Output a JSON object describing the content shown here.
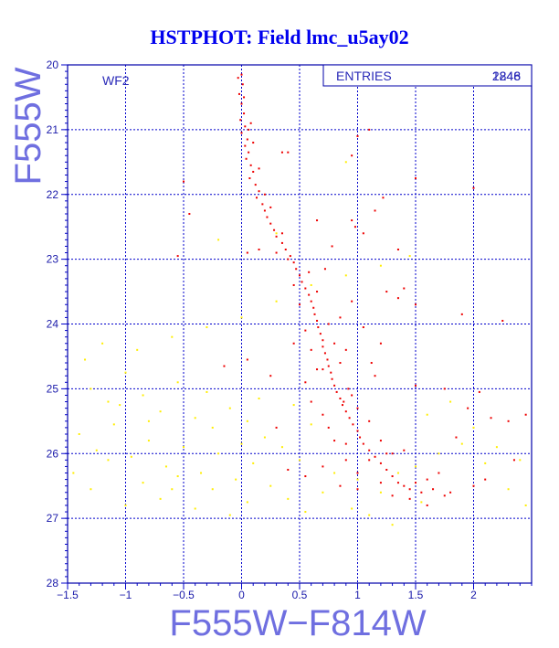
{
  "chart_data": {
    "type": "scatter",
    "title": "HSTPHOT: Field lmc_u5ay02",
    "xlabel": "F555W−F814W",
    "ylabel": "F555W",
    "xlim": [
      -1.5,
      2.5
    ],
    "ylim": [
      28,
      20
    ],
    "y_inverted": true,
    "grid": true,
    "x_ticks": [
      -1.5,
      -1,
      -0.5,
      0,
      0.5,
      1,
      1.5,
      2
    ],
    "x_tick_labels": [
      "−1.5",
      "−1",
      "−0.5",
      "0",
      "0.5",
      "1",
      "1.5",
      "2"
    ],
    "y_ticks": [
      20,
      21,
      22,
      23,
      24,
      25,
      26,
      27,
      28
    ],
    "y_tick_labels": [
      "20",
      "21",
      "22",
      "23",
      "24",
      "25",
      "26",
      "27",
      "28"
    ],
    "annotation": "WF2",
    "stats_box": {
      "label": "ENTRIES",
      "values": [
        "1248",
        "2846"
      ]
    },
    "colors": {
      "primary_points": "#ee0000",
      "secondary_points": "#ffee00",
      "grid": "#0000cc",
      "frame": "#0000aa"
    },
    "series": [
      {
        "color": "#ee0000",
        "points": [
          [
            0.0,
            20.15
          ],
          [
            0.01,
            20.3
          ],
          [
            -0.02,
            20.45
          ],
          [
            0.0,
            20.6
          ],
          [
            0.02,
            20.75
          ],
          [
            -0.01,
            20.85
          ],
          [
            0.03,
            20.95
          ],
          [
            0.0,
            21.05
          ],
          [
            0.05,
            21.15
          ],
          [
            0.03,
            21.25
          ],
          [
            0.06,
            21.35
          ],
          [
            0.04,
            21.45
          ],
          [
            0.08,
            21.55
          ],
          [
            0.1,
            21.65
          ],
          [
            0.07,
            21.75
          ],
          [
            0.12,
            21.85
          ],
          [
            0.15,
            21.95
          ],
          [
            0.13,
            22.05
          ],
          [
            0.18,
            22.15
          ],
          [
            0.2,
            22.25
          ],
          [
            0.22,
            22.35
          ],
          [
            0.25,
            22.45
          ],
          [
            0.28,
            22.55
          ],
          [
            0.3,
            22.65
          ],
          [
            0.35,
            22.75
          ],
          [
            0.38,
            22.85
          ],
          [
            0.42,
            22.95
          ],
          [
            0.45,
            23.05
          ],
          [
            0.47,
            23.15
          ],
          [
            0.5,
            23.25
          ],
          [
            0.52,
            23.35
          ],
          [
            0.55,
            23.45
          ],
          [
            0.58,
            23.55
          ],
          [
            0.6,
            23.65
          ],
          [
            0.62,
            23.75
          ],
          [
            0.63,
            23.85
          ],
          [
            0.65,
            23.95
          ],
          [
            0.66,
            24.05
          ],
          [
            0.68,
            24.15
          ],
          [
            0.7,
            24.25
          ],
          [
            0.7,
            24.35
          ],
          [
            0.72,
            24.45
          ],
          [
            0.74,
            24.55
          ],
          [
            0.75,
            24.65
          ],
          [
            0.77,
            24.75
          ],
          [
            0.78,
            24.85
          ],
          [
            0.8,
            24.95
          ],
          [
            0.82,
            25.05
          ],
          [
            0.85,
            25.15
          ],
          [
            0.87,
            25.25
          ],
          [
            0.9,
            25.35
          ],
          [
            0.93,
            25.45
          ],
          [
            0.96,
            25.55
          ],
          [
            1.0,
            25.65
          ],
          [
            1.02,
            25.75
          ],
          [
            1.05,
            25.85
          ],
          [
            1.1,
            25.95
          ],
          [
            1.15,
            26.05
          ],
          [
            1.2,
            26.15
          ],
          [
            1.25,
            26.25
          ],
          [
            1.3,
            26.35
          ],
          [
            1.35,
            26.45
          ],
          [
            1.4,
            26.5
          ],
          [
            1.45,
            26.55
          ],
          [
            1.5,
            26.45
          ],
          [
            1.55,
            26.6
          ],
          [
            1.6,
            26.4
          ],
          [
            1.65,
            26.55
          ],
          [
            1.2,
            26.45
          ],
          [
            1.0,
            26.3
          ],
          [
            0.9,
            26.1
          ],
          [
            0.8,
            25.8
          ],
          [
            0.75,
            25.6
          ],
          [
            0.7,
            25.4
          ],
          [
            0.95,
            25.1
          ],
          [
            1.0,
            25.3
          ],
          [
            1.1,
            25.5
          ],
          [
            1.2,
            25.8
          ],
          [
            1.3,
            26.0
          ],
          [
            0.85,
            24.6
          ],
          [
            0.9,
            24.4
          ],
          [
            0.65,
            24.7
          ],
          [
            0.6,
            24.4
          ],
          [
            0.55,
            24.1
          ],
          [
            0.75,
            24.0
          ],
          [
            0.8,
            24.3
          ],
          [
            0.5,
            23.7
          ],
          [
            0.45,
            23.4
          ],
          [
            0.65,
            23.5
          ],
          [
            0.4,
            23.0
          ],
          [
            0.35,
            22.6
          ],
          [
            0.3,
            22.9
          ],
          [
            0.25,
            22.2
          ],
          [
            0.2,
            22.0
          ],
          [
            0.15,
            21.6
          ],
          [
            0.1,
            21.2
          ],
          [
            0.08,
            20.9
          ],
          [
            -0.03,
            20.2
          ],
          [
            0.02,
            20.5
          ],
          [
            0.06,
            21.0
          ],
          [
            1.0,
            21.1
          ],
          [
            1.1,
            21.0
          ],
          [
            0.95,
            21.4
          ],
          [
            0.35,
            21.35
          ],
          [
            0.4,
            21.35
          ],
          [
            1.5,
            21.75
          ],
          [
            -0.5,
            21.8
          ],
          [
            2.0,
            21.9
          ],
          [
            -0.45,
            22.3
          ],
          [
            0.95,
            22.4
          ],
          [
            0.98,
            22.5
          ],
          [
            1.05,
            22.6
          ],
          [
            1.35,
            22.85
          ],
          [
            0.15,
            22.85
          ],
          [
            0.05,
            22.9
          ],
          [
            -0.55,
            22.95
          ],
          [
            0.65,
            22.4
          ],
          [
            1.25,
            23.5
          ],
          [
            1.35,
            23.6
          ],
          [
            1.4,
            23.45
          ],
          [
            1.5,
            23.7
          ],
          [
            1.9,
            23.85
          ],
          [
            2.25,
            23.95
          ],
          [
            0.7,
            24.7
          ],
          [
            1.15,
            24.8
          ],
          [
            1.5,
            24.95
          ],
          [
            1.75,
            25.0
          ],
          [
            2.05,
            25.05
          ],
          [
            1.95,
            25.3
          ],
          [
            2.15,
            25.45
          ],
          [
            2.3,
            25.5
          ],
          [
            2.45,
            25.4
          ],
          [
            0.6,
            25.2
          ],
          [
            0.9,
            25.85
          ],
          [
            1.1,
            26.1
          ],
          [
            1.25,
            26.0
          ],
          [
            1.4,
            25.95
          ],
          [
            1.7,
            26.3
          ],
          [
            1.8,
            26.6
          ],
          [
            2.0,
            26.5
          ],
          [
            2.1,
            26.4
          ],
          [
            0.55,
            26.35
          ],
          [
            0.7,
            26.2
          ],
          [
            0.85,
            26.5
          ],
          [
            1.0,
            26.55
          ],
          [
            1.3,
            26.65
          ],
          [
            1.45,
            26.7
          ],
          [
            1.6,
            26.8
          ],
          [
            1.75,
            26.65
          ],
          [
            0.45,
            24.3
          ],
          [
            0.55,
            24.9
          ],
          [
            0.25,
            24.8
          ],
          [
            0.3,
            25.6
          ],
          [
            0.4,
            26.25
          ],
          [
            1.12,
            24.6
          ],
          [
            1.2,
            24.3
          ],
          [
            0.85,
            23.9
          ],
          [
            1.05,
            24.05
          ],
          [
            0.95,
            23.65
          ],
          [
            0.72,
            23.15
          ],
          [
            0.58,
            23.2
          ],
          [
            0.78,
            22.8
          ],
          [
            1.15,
            22.25
          ],
          [
            1.22,
            22.05
          ],
          [
            -0.15,
            24.65
          ],
          [
            0.05,
            24.55
          ],
          [
            1.85,
            25.75
          ],
          [
            2.35,
            26.1
          ],
          [
            0.88,
            25.2
          ],
          [
            0.92,
            25.0
          ]
        ]
      },
      {
        "color": "#ffee00",
        "points": [
          [
            -1.3,
            25.0
          ],
          [
            -1.15,
            25.2
          ],
          [
            -1.0,
            24.75
          ],
          [
            -0.85,
            25.1
          ],
          [
            -0.7,
            25.35
          ],
          [
            -0.55,
            24.9
          ],
          [
            -0.4,
            25.45
          ],
          [
            -0.25,
            25.6
          ],
          [
            -0.1,
            25.3
          ],
          [
            0.05,
            25.5
          ],
          [
            0.2,
            25.75
          ],
          [
            0.35,
            25.9
          ],
          [
            0.5,
            26.1
          ],
          [
            -1.4,
            25.7
          ],
          [
            -1.25,
            25.95
          ],
          [
            -1.1,
            25.55
          ],
          [
            -0.95,
            26.05
          ],
          [
            -0.8,
            25.8
          ],
          [
            -0.65,
            26.2
          ],
          [
            -0.5,
            25.9
          ],
          [
            -0.35,
            26.3
          ],
          [
            -0.2,
            26.0
          ],
          [
            -0.05,
            26.4
          ],
          [
            0.1,
            26.15
          ],
          [
            0.25,
            26.5
          ],
          [
            0.4,
            26.7
          ],
          [
            0.55,
            26.9
          ],
          [
            -1.45,
            26.3
          ],
          [
            -1.3,
            26.55
          ],
          [
            -1.15,
            26.1
          ],
          [
            -1.0,
            26.8
          ],
          [
            -0.85,
            26.45
          ],
          [
            -0.7,
            26.7
          ],
          [
            -0.55,
            26.35
          ],
          [
            -0.4,
            26.85
          ],
          [
            -0.25,
            26.55
          ],
          [
            -0.1,
            26.95
          ],
          [
            0.05,
            26.75
          ],
          [
            0.7,
            26.6
          ],
          [
            0.8,
            26.3
          ],
          [
            0.95,
            26.85
          ],
          [
            1.1,
            26.95
          ],
          [
            1.3,
            27.1
          ],
          [
            1.5,
            26.2
          ],
          [
            1.7,
            26.0
          ],
          [
            1.9,
            25.85
          ],
          [
            2.1,
            26.15
          ],
          [
            2.3,
            26.55
          ],
          [
            2.45,
            26.8
          ],
          [
            1.6,
            25.4
          ],
          [
            1.8,
            25.2
          ],
          [
            2.0,
            25.6
          ],
          [
            2.2,
            25.9
          ],
          [
            2.4,
            26.1
          ],
          [
            -1.35,
            24.55
          ],
          [
            -1.2,
            24.3
          ],
          [
            -0.9,
            24.4
          ],
          [
            -0.6,
            24.2
          ],
          [
            -0.3,
            24.05
          ],
          [
            0.0,
            23.9
          ],
          [
            0.3,
            23.65
          ],
          [
            0.6,
            23.4
          ],
          [
            0.9,
            23.25
          ],
          [
            1.2,
            23.1
          ],
          [
            1.45,
            22.95
          ],
          [
            0.3,
            22.6
          ],
          [
            -0.2,
            22.7
          ],
          [
            0.9,
            21.5
          ],
          [
            1.0,
            26.4
          ],
          [
            1.2,
            26.6
          ],
          [
            1.35,
            26.3
          ],
          [
            1.55,
            26.75
          ],
          [
            0.15,
            25.15
          ],
          [
            0.45,
            25.25
          ],
          [
            -0.8,
            25.5
          ],
          [
            -1.05,
            25.25
          ],
          [
            -0.3,
            25.05
          ],
          [
            0.0,
            25.85
          ],
          [
            0.6,
            25.55
          ],
          [
            -0.6,
            26.55
          ]
        ]
      }
    ]
  }
}
